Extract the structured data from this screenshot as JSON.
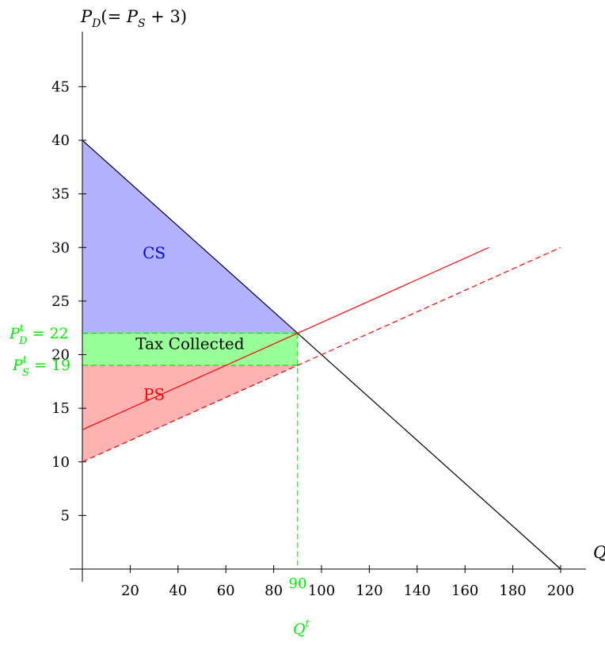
{
  "chart_data": {
    "type": "line",
    "title": "",
    "y_axis_label": {
      "main": "P",
      "main_sub": "D",
      "paren_open": "(= ",
      "inner": "P",
      "inner_sub": "S",
      "tail": " + 3)"
    },
    "x_axis_label": "Q",
    "xlim": [
      0,
      200
    ],
    "ylim": [
      0,
      48
    ],
    "x_ticks": [
      20,
      40,
      60,
      80,
      100,
      120,
      140,
      160,
      180,
      200
    ],
    "y_ticks": [
      5,
      10,
      15,
      20,
      25,
      30,
      35,
      40,
      45
    ],
    "grid": false,
    "series": [
      {
        "role": "demand",
        "style": "solid",
        "color": "#000000",
        "x": [
          0,
          200
        ],
        "y": [
          40,
          0
        ]
      },
      {
        "role": "supply_shifted",
        "style": "solid",
        "color": "#ff0000",
        "x": [
          0,
          170
        ],
        "y": [
          13,
          30
        ]
      },
      {
        "role": "supply",
        "style": "dashed",
        "color": "#ff0000",
        "x": [
          0,
          200
        ],
        "y": [
          10,
          30
        ]
      }
    ],
    "regions": [
      {
        "label": "CS",
        "color": "#0000ff",
        "fill": "#b2b2ff",
        "points": [
          [
            0,
            40
          ],
          [
            0,
            22
          ],
          [
            90,
            22
          ]
        ],
        "label_at": [
          30,
          29
        ]
      },
      {
        "label": "Tax Collected",
        "color": "#000000",
        "fill": "#99ff99",
        "points": [
          [
            0,
            22
          ],
          [
            90,
            22
          ],
          [
            90,
            19
          ],
          [
            0,
            19
          ]
        ],
        "label_at": [
          45,
          20.5
        ]
      },
      {
        "label": "PS",
        "color": "#ff0000",
        "fill": "#ffb2b2",
        "points": [
          [
            0,
            19
          ],
          [
            90,
            19
          ],
          [
            0,
            10
          ]
        ],
        "label_at": [
          30,
          15.8
        ]
      }
    ],
    "guides": {
      "color": "#00ee00",
      "pd_value": 22,
      "ps_value": 19,
      "q_value": 90
    },
    "annotations": {
      "pd": {
        "base": "P",
        "sup": "t",
        "sub": "D",
        "eq": " = ",
        "value": "22"
      },
      "ps": {
        "base": "P",
        "sup": "t",
        "sub": "S",
        "eq": " = ",
        "value": "19"
      },
      "q_value": "90",
      "q_symbol": {
        "base": "Q",
        "sup": "t"
      }
    }
  }
}
